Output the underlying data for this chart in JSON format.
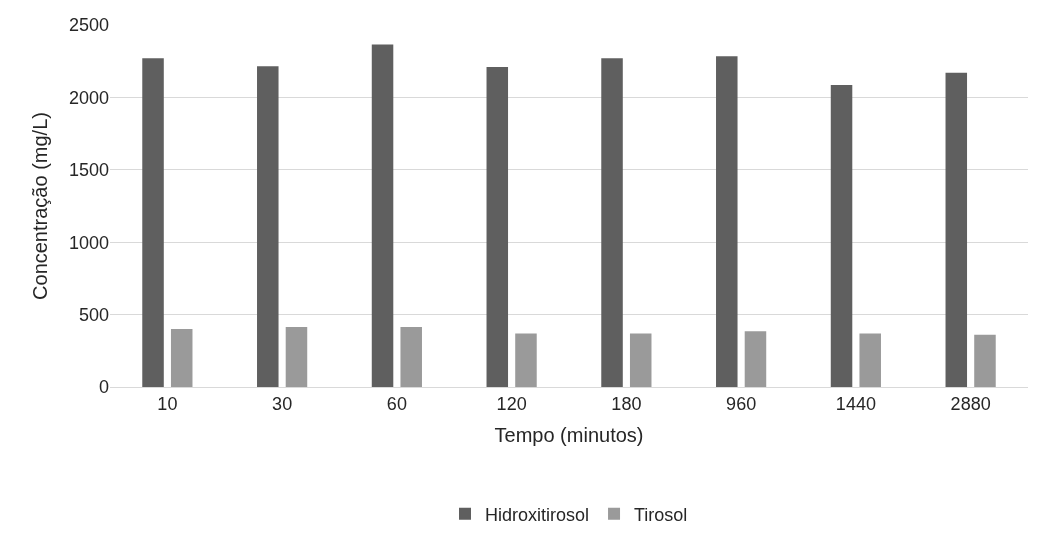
{
  "chart_data": {
    "type": "bar",
    "xlabel": "Tempo (minutos)",
    "ylabel": "Concentração (mg/L)",
    "categories": [
      "10",
      "30",
      "60",
      "120",
      "180",
      "960",
      "1440",
      "2880"
    ],
    "series": [
      {
        "name": "Hidroxitirosol",
        "color": "#5f5f5f",
        "values": [
          2270,
          2215,
          2365,
          2210,
          2270,
          2285,
          2085,
          2170
        ]
      },
      {
        "name": "Tirosol",
        "color": "#9a9a9a",
        "values": [
          400,
          415,
          415,
          370,
          370,
          385,
          370,
          360
        ]
      }
    ],
    "ylim": [
      0,
      2500
    ],
    "yticks": [
      0,
      500,
      1000,
      1500,
      2000,
      2500
    ],
    "grid": "y",
    "legend": "bottom"
  }
}
